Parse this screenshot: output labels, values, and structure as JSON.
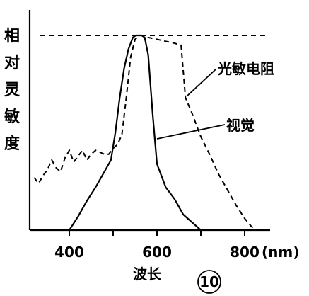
{
  "chart_data": {
    "type": "line",
    "ylabel": "相对灵敏度",
    "xlabel": "波长",
    "x_unit": "(nm)",
    "xlim": [
      310,
      830
    ],
    "ylim": [
      0,
      1.0
    ],
    "x_ticks": [
      {
        "value": 400,
        "label": "400"
      },
      {
        "value": 500,
        "label": ""
      },
      {
        "value": 600,
        "label": "600"
      },
      {
        "value": 700,
        "label": ""
      },
      {
        "value": 800,
        "label": "800"
      }
    ],
    "grid": false,
    "figure_number": "10",
    "series": [
      {
        "name": "视觉",
        "style": "solid",
        "x": [
          400,
          420,
          440,
          460,
          480,
          495,
          505,
          515,
          525,
          535,
          545,
          552,
          558,
          565,
          572,
          580,
          590,
          600,
          620,
          640,
          660,
          680,
          700
        ],
        "y": [
          0.0,
          0.07,
          0.15,
          0.22,
          0.3,
          0.36,
          0.5,
          0.68,
          0.83,
          0.93,
          0.99,
          1.0,
          1.0,
          1.0,
          0.99,
          0.9,
          0.6,
          0.34,
          0.22,
          0.16,
          0.08,
          0.04,
          0.0
        ]
      },
      {
        "name": "光敏电阻",
        "style": "dashed",
        "x": [
          320,
          330,
          340,
          350,
          360,
          370,
          380,
          390,
          400,
          410,
          420,
          430,
          440,
          450,
          460,
          470,
          480,
          490,
          500,
          510,
          520,
          530,
          540,
          550,
          560,
          570,
          580,
          600,
          620,
          640,
          655,
          665,
          680,
          700,
          720,
          740,
          760,
          780,
          800,
          815,
          825
        ],
        "y": [
          0.27,
          0.24,
          0.28,
          0.31,
          0.36,
          0.32,
          0.3,
          0.37,
          0.41,
          0.35,
          0.38,
          0.41,
          0.36,
          0.39,
          0.41,
          0.4,
          0.39,
          0.39,
          0.42,
          0.44,
          0.49,
          0.68,
          0.89,
          0.98,
          1.0,
          1.0,
          0.99,
          0.98,
          0.97,
          0.96,
          0.95,
          0.68,
          0.6,
          0.48,
          0.39,
          0.29,
          0.21,
          0.13,
          0.06,
          0.02,
          0.0
        ]
      }
    ],
    "reference_line": {
      "y": 1.0,
      "style": "dashed"
    }
  }
}
